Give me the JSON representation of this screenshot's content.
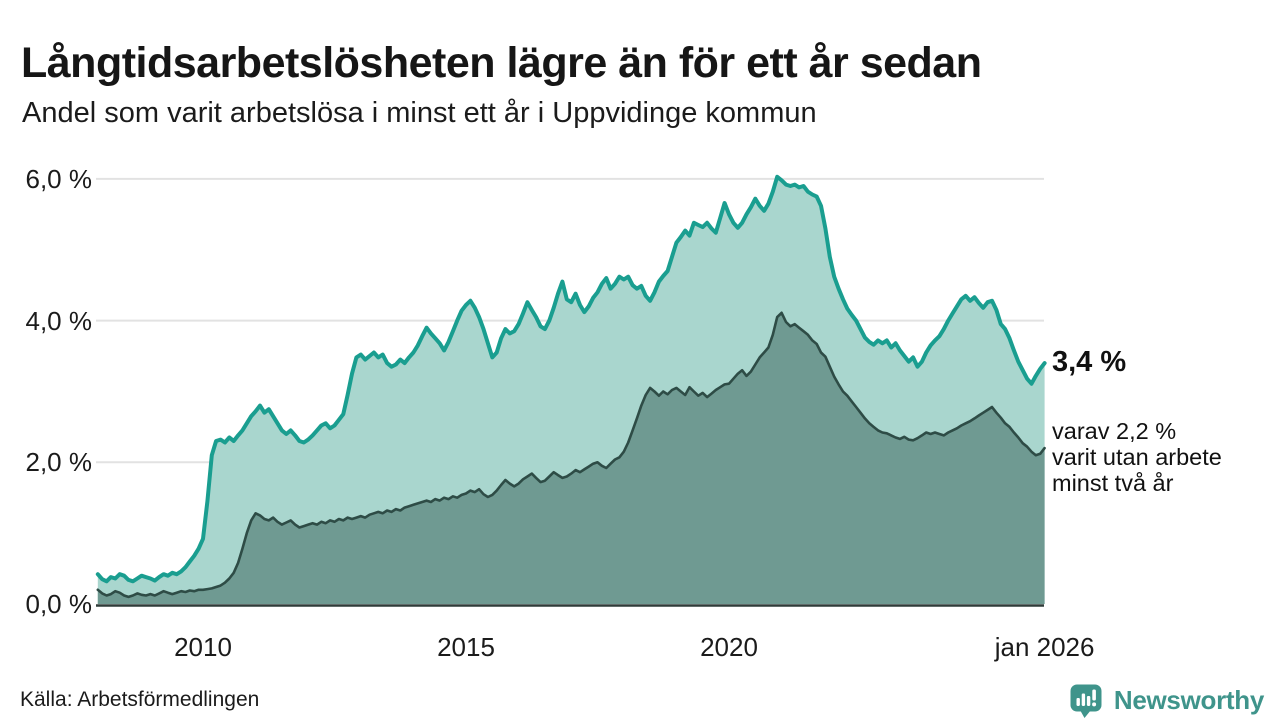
{
  "header": {
    "title": "Långtidsarbetslösheten lägre än för ett år sedan",
    "subtitle": "Andel som varit arbetslösa i minst ett år i Uppvidinge kommun"
  },
  "footer": {
    "source": "Källa: Arbetsförmedlingen",
    "brand": "Newsworthy",
    "brand_color": "#3f948b",
    "brand_icon": "newsworthy-bar-chart-pin"
  },
  "chart_data": {
    "type": "area",
    "title": "Långtidsarbetslösheten lägre än för ett år sedan",
    "subtitle": "Andel som varit arbetslösa i minst ett år i Uppvidinge kommun",
    "x_unit": "month",
    "x_start": "2008-01",
    "x_end": "2026-01",
    "ylim": [
      0,
      6.4
    ],
    "grid": "horizontal",
    "grid_values": [
      2,
      4,
      6
    ],
    "grid_color": "#e2e2e2",
    "axis_color": "#2f3c39",
    "y_ticks": [
      {
        "label": "0,0 %",
        "value": 0
      },
      {
        "label": "2,0 %",
        "value": 2
      },
      {
        "label": "4,0 %",
        "value": 4
      },
      {
        "label": "6,0 %",
        "value": 6
      }
    ],
    "x_ticks": [
      {
        "label": "2010",
        "month": 24
      },
      {
        "label": "2015",
        "month": 84
      },
      {
        "label": "2020",
        "month": 144
      },
      {
        "label": "jan 2026",
        "month": 216
      }
    ],
    "annotation": {
      "big": "3,4 %",
      "lines": [
        "varav 2,2 %",
        "varit utan arbete",
        "minst två år"
      ]
    },
    "series": [
      {
        "name": "arbetslösa minst ett år",
        "line_color": "#1a9e90",
        "fill_color": "#a9d6ce",
        "line_width": 4,
        "end_value": 3.4,
        "values": [
          0.42,
          0.35,
          0.32,
          0.38,
          0.36,
          0.42,
          0.4,
          0.34,
          0.32,
          0.36,
          0.4,
          0.38,
          0.36,
          0.33,
          0.38,
          0.42,
          0.4,
          0.44,
          0.42,
          0.46,
          0.52,
          0.6,
          0.68,
          0.78,
          0.92,
          1.45,
          2.1,
          2.3,
          2.32,
          2.28,
          2.35,
          2.3,
          2.38,
          2.45,
          2.55,
          2.65,
          2.72,
          2.8,
          2.7,
          2.75,
          2.65,
          2.55,
          2.45,
          2.4,
          2.45,
          2.38,
          2.3,
          2.28,
          2.32,
          2.38,
          2.45,
          2.52,
          2.55,
          2.48,
          2.52,
          2.6,
          2.68,
          2.95,
          3.25,
          3.48,
          3.52,
          3.45,
          3.5,
          3.55,
          3.48,
          3.52,
          3.4,
          3.35,
          3.38,
          3.45,
          3.4,
          3.48,
          3.55,
          3.65,
          3.78,
          3.9,
          3.82,
          3.75,
          3.68,
          3.58,
          3.7,
          3.85,
          4.0,
          4.14,
          4.22,
          4.28,
          4.18,
          4.05,
          3.88,
          3.68,
          3.48,
          3.55,
          3.75,
          3.88,
          3.82,
          3.85,
          3.95,
          4.1,
          4.26,
          4.15,
          4.05,
          3.92,
          3.88,
          4.0,
          4.18,
          4.38,
          4.55,
          4.3,
          4.26,
          4.38,
          4.22,
          4.12,
          4.2,
          4.32,
          4.4,
          4.52,
          4.6,
          4.45,
          4.52,
          4.62,
          4.58,
          4.62,
          4.5,
          4.45,
          4.49,
          4.35,
          4.28,
          4.4,
          4.55,
          4.63,
          4.7,
          4.9,
          5.1,
          5.18,
          5.27,
          5.2,
          5.38,
          5.35,
          5.32,
          5.38,
          5.3,
          5.24,
          5.45,
          5.66,
          5.5,
          5.38,
          5.31,
          5.38,
          5.5,
          5.6,
          5.72,
          5.62,
          5.55,
          5.65,
          5.82,
          6.03,
          5.98,
          5.92,
          5.9,
          5.92,
          5.88,
          5.9,
          5.82,
          5.78,
          5.75,
          5.62,
          5.3,
          4.9,
          4.62,
          4.45,
          4.3,
          4.17,
          4.08,
          4.0,
          3.88,
          3.76,
          3.7,
          3.66,
          3.72,
          3.68,
          3.72,
          3.62,
          3.68,
          3.58,
          3.5,
          3.42,
          3.48,
          3.35,
          3.42,
          3.55,
          3.65,
          3.72,
          3.78,
          3.88,
          4.0,
          4.1,
          4.2,
          4.3,
          4.35,
          4.28,
          4.33,
          4.25,
          4.18,
          4.26,
          4.28,
          4.15,
          3.95,
          3.88,
          3.75,
          3.58,
          3.42,
          3.3,
          3.18,
          3.11,
          3.22,
          3.32,
          3.4
        ]
      },
      {
        "name": "varav utan arbete minst två år",
        "line_color": "#2e4c46",
        "fill_color": "#6f9a92",
        "line_width": 2.6,
        "end_value": 2.2,
        "values": [
          0.2,
          0.15,
          0.12,
          0.14,
          0.18,
          0.16,
          0.12,
          0.1,
          0.12,
          0.15,
          0.13,
          0.12,
          0.14,
          0.12,
          0.15,
          0.18,
          0.16,
          0.14,
          0.16,
          0.18,
          0.17,
          0.19,
          0.18,
          0.2,
          0.2,
          0.21,
          0.22,
          0.24,
          0.26,
          0.3,
          0.36,
          0.44,
          0.58,
          0.78,
          1.0,
          1.18,
          1.28,
          1.25,
          1.2,
          1.18,
          1.22,
          1.16,
          1.12,
          1.15,
          1.18,
          1.12,
          1.08,
          1.1,
          1.12,
          1.14,
          1.12,
          1.16,
          1.14,
          1.18,
          1.16,
          1.2,
          1.18,
          1.22,
          1.2,
          1.22,
          1.24,
          1.22,
          1.26,
          1.28,
          1.3,
          1.28,
          1.32,
          1.3,
          1.34,
          1.32,
          1.36,
          1.38,
          1.4,
          1.42,
          1.44,
          1.46,
          1.44,
          1.48,
          1.46,
          1.5,
          1.48,
          1.52,
          1.5,
          1.54,
          1.56,
          1.6,
          1.58,
          1.62,
          1.55,
          1.51,
          1.54,
          1.6,
          1.68,
          1.75,
          1.7,
          1.66,
          1.7,
          1.76,
          1.8,
          1.84,
          1.78,
          1.72,
          1.74,
          1.8,
          1.86,
          1.82,
          1.78,
          1.8,
          1.84,
          1.89,
          1.86,
          1.9,
          1.94,
          1.98,
          2.0,
          1.95,
          1.92,
          1.98,
          2.04,
          2.07,
          2.15,
          2.28,
          2.45,
          2.62,
          2.8,
          2.95,
          3.05,
          3.0,
          2.94,
          3.0,
          2.96,
          3.02,
          3.05,
          3.0,
          2.95,
          3.06,
          3.0,
          2.94,
          2.98,
          2.92,
          2.97,
          3.02,
          3.06,
          3.1,
          3.11,
          3.18,
          3.25,
          3.3,
          3.22,
          3.28,
          3.38,
          3.48,
          3.55,
          3.62,
          3.8,
          4.05,
          4.11,
          3.98,
          3.92,
          3.95,
          3.9,
          3.85,
          3.8,
          3.72,
          3.67,
          3.55,
          3.49,
          3.35,
          3.21,
          3.1,
          3.0,
          2.94,
          2.86,
          2.78,
          2.7,
          2.62,
          2.55,
          2.5,
          2.45,
          2.42,
          2.41,
          2.38,
          2.35,
          2.33,
          2.36,
          2.32,
          2.31,
          2.34,
          2.38,
          2.42,
          2.4,
          2.42,
          2.4,
          2.38,
          2.42,
          2.45,
          2.48,
          2.52,
          2.55,
          2.58,
          2.62,
          2.66,
          2.7,
          2.74,
          2.78,
          2.7,
          2.63,
          2.55,
          2.5,
          2.42,
          2.35,
          2.27,
          2.22,
          2.15,
          2.1,
          2.12,
          2.2
        ]
      }
    ]
  }
}
